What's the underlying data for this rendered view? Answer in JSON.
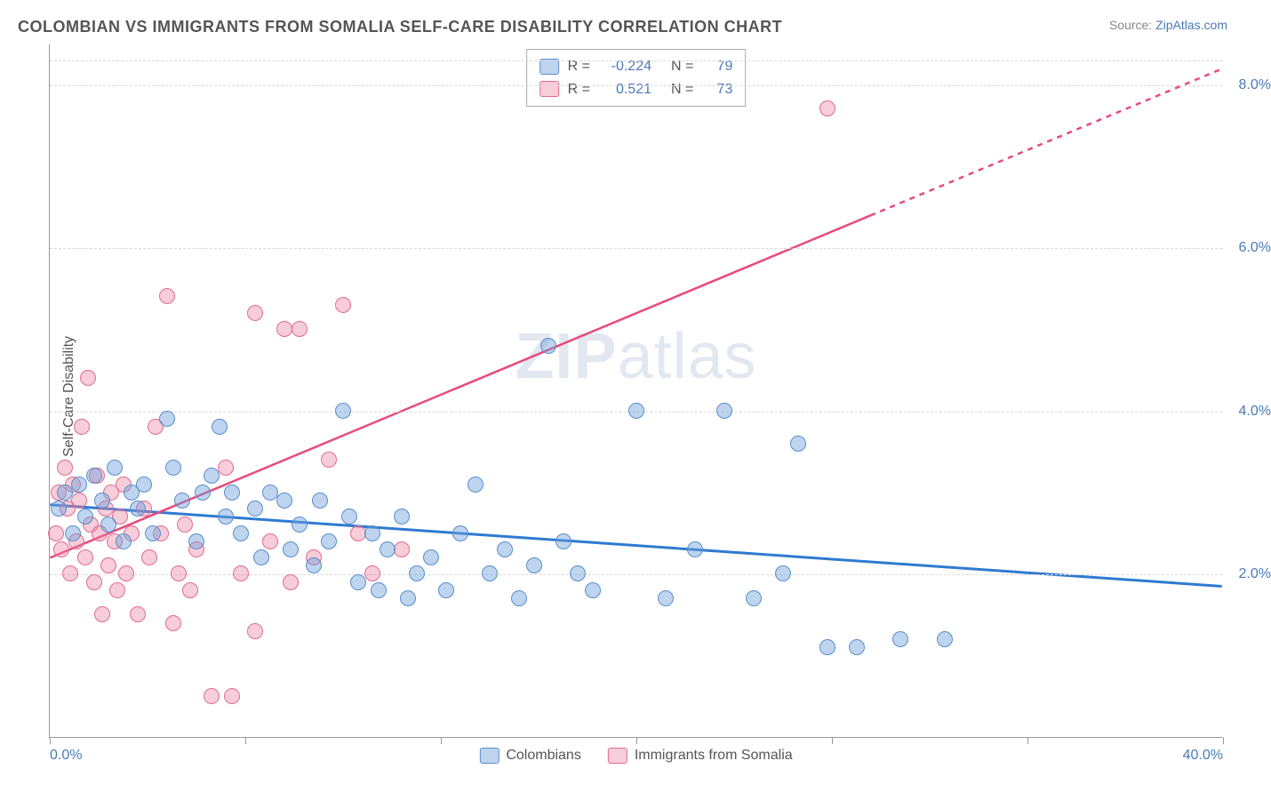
{
  "title": "COLOMBIAN VS IMMIGRANTS FROM SOMALIA SELF-CARE DISABILITY CORRELATION CHART",
  "source_label": "Source:",
  "source_link": "ZipAtlas.com",
  "y_axis_label": "Self-Care Disability",
  "watermark": {
    "bold": "ZIP",
    "rest": "atlas"
  },
  "chart": {
    "type": "scatter",
    "xlim": [
      0,
      40
    ],
    "ylim": [
      0,
      8.5
    ],
    "x_ticks": [
      0,
      6.67,
      13.33,
      20,
      26.67,
      33.33,
      40
    ],
    "x_tick_labels": {
      "0": "0.0%",
      "40": "40.0%"
    },
    "y_ticks": [
      2,
      4,
      6,
      8
    ],
    "y_tick_labels": [
      "2.0%",
      "4.0%",
      "6.0%",
      "8.0%"
    ],
    "grid_color": "#d8d8d8",
    "background_color": "#ffffff",
    "axis_color": "#999999",
    "tick_label_color": "#4a7ab8",
    "point_radius": 9,
    "point_opacity": 0.55,
    "series": [
      {
        "name": "Colombians",
        "color_fill": "rgba(110,160,220,0.45)",
        "color_stroke": "#5a8fc9",
        "R": "-0.224",
        "N": "79",
        "trend": {
          "y_at_x0": 2.85,
          "y_at_xmax": 1.85,
          "stroke": "#2f7ad1",
          "width": 3
        },
        "points": [
          [
            0.3,
            2.8
          ],
          [
            0.5,
            3.0
          ],
          [
            0.8,
            2.5
          ],
          [
            1.0,
            3.1
          ],
          [
            1.2,
            2.7
          ],
          [
            1.5,
            3.2
          ],
          [
            1.8,
            2.9
          ],
          [
            2.0,
            2.6
          ],
          [
            2.2,
            3.3
          ],
          [
            2.5,
            2.4
          ],
          [
            2.8,
            3.0
          ],
          [
            3.0,
            2.8
          ],
          [
            3.2,
            3.1
          ],
          [
            3.5,
            2.5
          ],
          [
            4.0,
            3.9
          ],
          [
            4.2,
            3.3
          ],
          [
            4.5,
            2.9
          ],
          [
            5.0,
            2.4
          ],
          [
            5.2,
            3.0
          ],
          [
            5.5,
            3.2
          ],
          [
            5.8,
            3.8
          ],
          [
            6.0,
            2.7
          ],
          [
            6.2,
            3.0
          ],
          [
            6.5,
            2.5
          ],
          [
            7.0,
            2.8
          ],
          [
            7.2,
            2.2
          ],
          [
            7.5,
            3.0
          ],
          [
            8.0,
            2.9
          ],
          [
            8.2,
            2.3
          ],
          [
            8.5,
            2.6
          ],
          [
            9.0,
            2.1
          ],
          [
            9.2,
            2.9
          ],
          [
            9.5,
            2.4
          ],
          [
            10.0,
            4.0
          ],
          [
            10.2,
            2.7
          ],
          [
            10.5,
            1.9
          ],
          [
            11.0,
            2.5
          ],
          [
            11.2,
            1.8
          ],
          [
            11.5,
            2.3
          ],
          [
            12.0,
            2.7
          ],
          [
            12.2,
            1.7
          ],
          [
            12.5,
            2.0
          ],
          [
            13.0,
            2.2
          ],
          [
            13.5,
            1.8
          ],
          [
            14.0,
            2.5
          ],
          [
            14.5,
            3.1
          ],
          [
            15.0,
            2.0
          ],
          [
            15.5,
            2.3
          ],
          [
            16.0,
            1.7
          ],
          [
            16.5,
            2.1
          ],
          [
            17.0,
            4.8
          ],
          [
            17.5,
            2.4
          ],
          [
            18.0,
            2.0
          ],
          [
            18.5,
            1.8
          ],
          [
            20.0,
            4.0
          ],
          [
            21.0,
            1.7
          ],
          [
            22.0,
            2.3
          ],
          [
            23.0,
            4.0
          ],
          [
            24.0,
            1.7
          ],
          [
            25.0,
            2.0
          ],
          [
            25.5,
            3.6
          ],
          [
            26.5,
            1.1
          ],
          [
            27.5,
            1.1
          ],
          [
            29.0,
            1.2
          ],
          [
            30.5,
            1.2
          ]
        ]
      },
      {
        "name": "Immigrants from Somalia",
        "color_fill": "rgba(235,130,160,0.4)",
        "color_stroke": "#e06b8f",
        "R": "0.521",
        "N": "73",
        "trend": {
          "y_at_x0": 2.2,
          "y_at_xmax": 8.2,
          "stroke": "#e84a7a",
          "width": 2.5,
          "solid_until_x": 28,
          "dashed_from_x": 28
        },
        "points": [
          [
            0.2,
            2.5
          ],
          [
            0.3,
            3.0
          ],
          [
            0.4,
            2.3
          ],
          [
            0.5,
            3.3
          ],
          [
            0.6,
            2.8
          ],
          [
            0.7,
            2.0
          ],
          [
            0.8,
            3.1
          ],
          [
            0.9,
            2.4
          ],
          [
            1.0,
            2.9
          ],
          [
            1.1,
            3.8
          ],
          [
            1.2,
            2.2
          ],
          [
            1.3,
            4.4
          ],
          [
            1.4,
            2.6
          ],
          [
            1.5,
            1.9
          ],
          [
            1.6,
            3.2
          ],
          [
            1.7,
            2.5
          ],
          [
            1.8,
            1.5
          ],
          [
            1.9,
            2.8
          ],
          [
            2.0,
            2.1
          ],
          [
            2.1,
            3.0
          ],
          [
            2.2,
            2.4
          ],
          [
            2.3,
            1.8
          ],
          [
            2.4,
            2.7
          ],
          [
            2.5,
            3.1
          ],
          [
            2.6,
            2.0
          ],
          [
            2.8,
            2.5
          ],
          [
            3.0,
            1.5
          ],
          [
            3.2,
            2.8
          ],
          [
            3.4,
            2.2
          ],
          [
            3.6,
            3.8
          ],
          [
            3.8,
            2.5
          ],
          [
            4.0,
            5.4
          ],
          [
            4.2,
            1.4
          ],
          [
            4.4,
            2.0
          ],
          [
            4.6,
            2.6
          ],
          [
            4.8,
            1.8
          ],
          [
            5.0,
            2.3
          ],
          [
            5.5,
            0.5
          ],
          [
            6.0,
            3.3
          ],
          [
            6.2,
            0.5
          ],
          [
            6.5,
            2.0
          ],
          [
            7.0,
            1.3
          ],
          [
            7.0,
            5.2
          ],
          [
            7.5,
            2.4
          ],
          [
            8.0,
            5.0
          ],
          [
            8.2,
            1.9
          ],
          [
            8.5,
            5.0
          ],
          [
            9.0,
            2.2
          ],
          [
            9.5,
            3.4
          ],
          [
            10.0,
            5.3
          ],
          [
            10.5,
            2.5
          ],
          [
            11.0,
            2.0
          ],
          [
            12.0,
            2.3
          ],
          [
            26.5,
            7.7
          ]
        ]
      }
    ]
  },
  "legend_top": [
    {
      "swatch_fill": "rgba(110,160,220,0.45)",
      "swatch_stroke": "#5a8fc9",
      "R_label": "R =",
      "R": "-0.224",
      "N_label": "N =",
      "N": "79"
    },
    {
      "swatch_fill": "rgba(235,130,160,0.4)",
      "swatch_stroke": "#e06b8f",
      "R_label": "R =",
      "R": "0.521",
      "N_label": "N =",
      "N": "73"
    }
  ],
  "legend_bottom": [
    {
      "swatch_fill": "rgba(110,160,220,0.45)",
      "swatch_stroke": "#5a8fc9",
      "label": "Colombians"
    },
    {
      "swatch_fill": "rgba(235,130,160,0.4)",
      "swatch_stroke": "#e06b8f",
      "label": "Immigrants from Somalia"
    }
  ]
}
